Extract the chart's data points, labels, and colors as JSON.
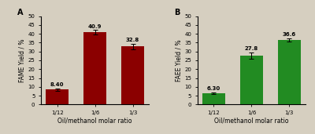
{
  "panel_A": {
    "label": "A",
    "categories": [
      "1/12",
      "1/6",
      "1/3"
    ],
    "values": [
      8.4,
      40.9,
      32.8
    ],
    "errors": [
      0.8,
      1.2,
      1.5
    ],
    "bar_color": "#8B0000",
    "ylabel": "FAME Yield / %",
    "xlabel": "Oil/methanol molar ratio",
    "ylim": [
      0,
      50
    ],
    "yticks": [
      0,
      5,
      10,
      15,
      20,
      25,
      30,
      35,
      40,
      45,
      50
    ],
    "ytick_labels": [
      "0",
      "5",
      "10",
      "15",
      "20",
      "25",
      "30",
      "35",
      "40",
      "45",
      "50"
    ],
    "value_labels": [
      "8.40",
      "40.9",
      "32.8"
    ]
  },
  "panel_B": {
    "label": "B",
    "categories": [
      "1/12",
      "1/6",
      "1/3"
    ],
    "values": [
      6.3,
      27.8,
      36.6
    ],
    "errors": [
      0.5,
      1.8,
      1.0
    ],
    "bar_color": "#228B22",
    "ylabel": "FAEE Yield / %",
    "xlabel": "Oil/methanol molar ratio",
    "ylim": [
      0,
      50
    ],
    "yticks": [
      0,
      5,
      10,
      15,
      20,
      25,
      30,
      35,
      40,
      45,
      50
    ],
    "ytick_labels": [
      "0",
      "5",
      "10",
      "15",
      "20",
      "25",
      "30",
      "35",
      "40",
      "45",
      "50"
    ],
    "value_labels": [
      "6.30",
      "27.8",
      "36.6"
    ]
  },
  "background_color": "#d6cfc0",
  "fig_width": 4.0,
  "fig_height": 1.71,
  "dpi": 100
}
